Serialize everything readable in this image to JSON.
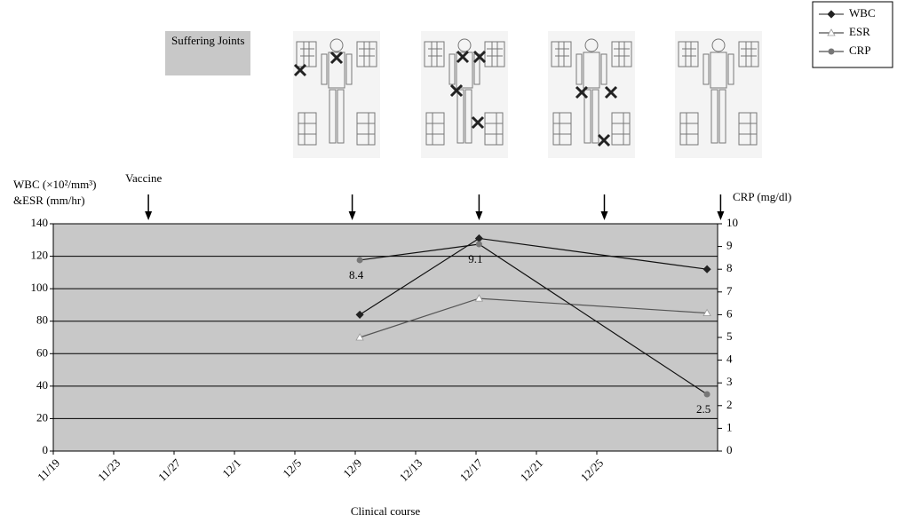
{
  "header": {
    "label": "Suffering Joints"
  },
  "chart_data": {
    "type": "line",
    "x_title": "Clinical course",
    "y_title": "WBC (×10²/mm³)",
    "y_title_2": "&ESR (mm/hr)",
    "y2_title": "CRP (mg/dl)",
    "annotation": "Vaccine",
    "annotation_x": [
      6.3,
      19.8,
      28.2,
      36.5,
      44.2
    ],
    "xlim": [
      0,
      44
    ],
    "xticks": [
      {
        "value": 0,
        "label": "11/19"
      },
      {
        "value": 4,
        "label": "11/23"
      },
      {
        "value": 8,
        "label": "11/27"
      },
      {
        "value": 12,
        "label": "12/1"
      },
      {
        "value": 16,
        "label": "12/5"
      },
      {
        "value": 20,
        "label": "12/9"
      },
      {
        "value": 24,
        "label": "12/13"
      },
      {
        "value": 28,
        "label": "12/17"
      },
      {
        "value": 32,
        "label": "12/21"
      },
      {
        "value": 36,
        "label": "12/25"
      }
    ],
    "x": [
      20.3,
      28.2,
      43.3
    ],
    "ylim": [
      0,
      140
    ],
    "yticks": [
      0,
      20,
      40,
      60,
      80,
      100,
      120,
      140
    ],
    "y2lim": [
      0,
      10
    ],
    "y2ticks": [
      0,
      1,
      2,
      3,
      4,
      5,
      6,
      7,
      8,
      9,
      10
    ],
    "grid": true,
    "legend": "top-right",
    "series": [
      {
        "name": "WBC",
        "color": "#222222",
        "marker": "diamond",
        "values": [
          84,
          131,
          112
        ]
      },
      {
        "name": "ESR",
        "color": "#ffffff",
        "marker": "triangle",
        "values": [
          70,
          94,
          85
        ]
      },
      {
        "name": "CRP",
        "color": "#777777",
        "marker": "circle",
        "axis": "y2",
        "show_values": true,
        "values": [
          8.4,
          9.1,
          2.5
        ]
      }
    ]
  }
}
